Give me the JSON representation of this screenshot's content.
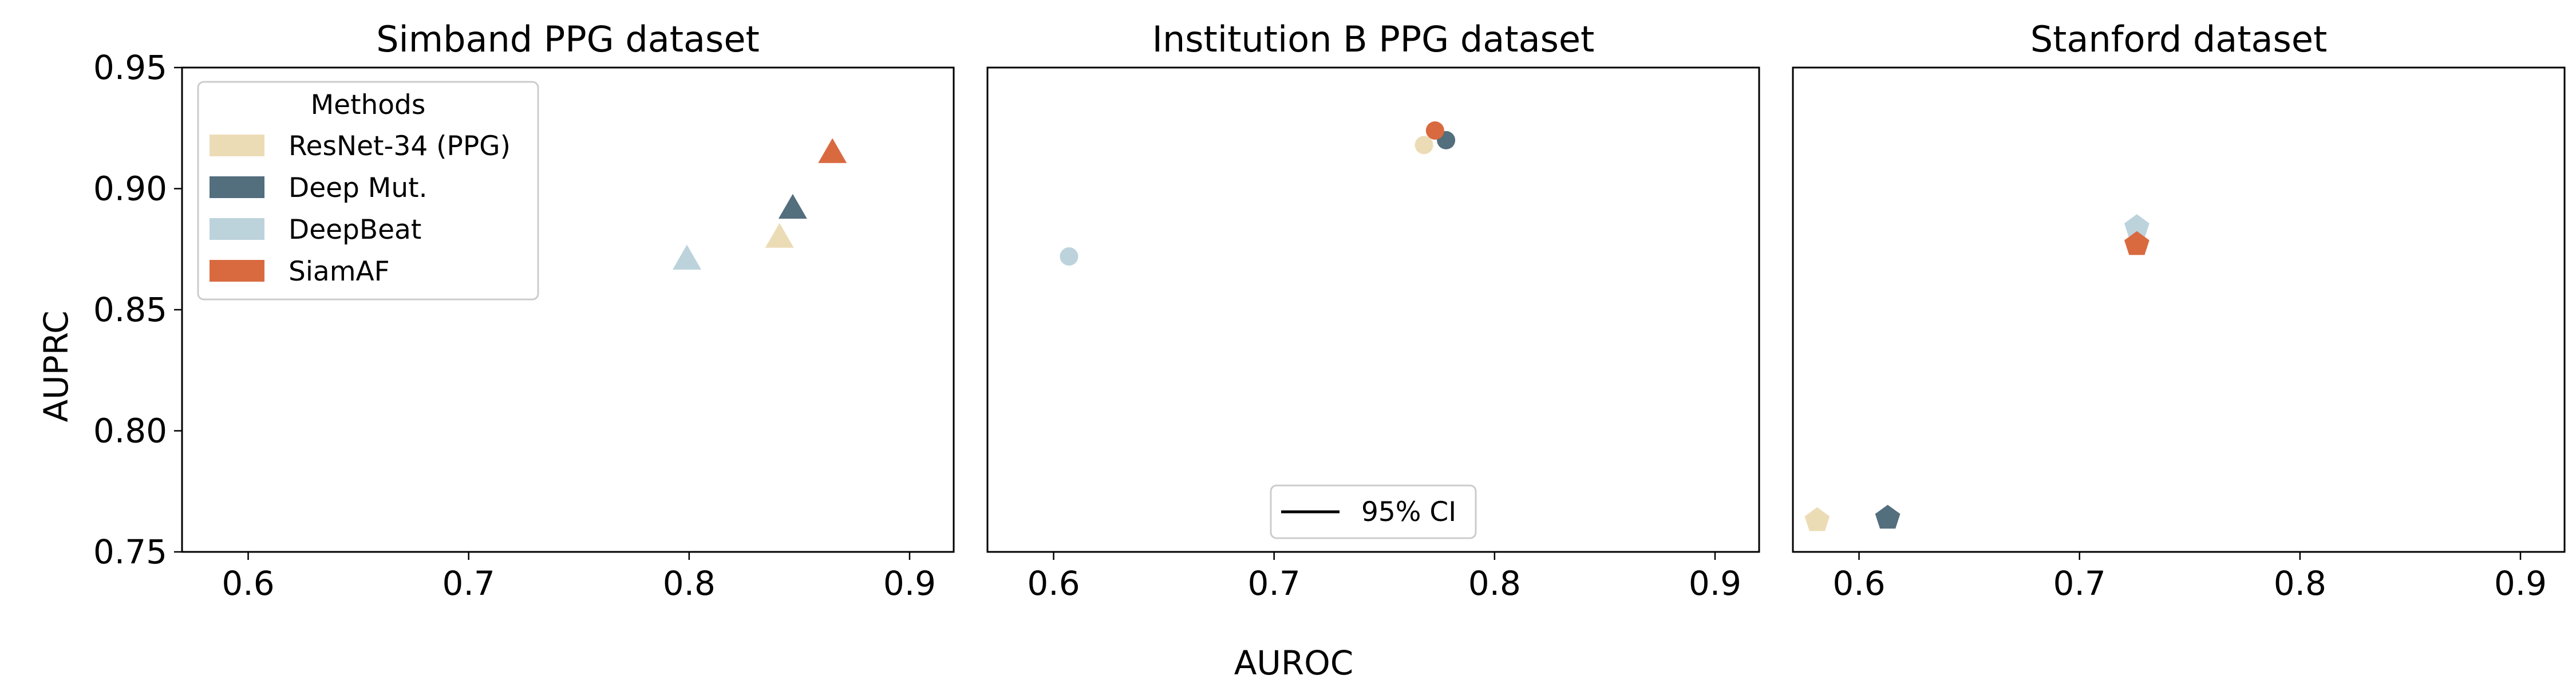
{
  "figure": {
    "shared_xlabel": "AUROC",
    "shared_ylabel": "AUPRC"
  },
  "legend_methods": {
    "title": "Methods",
    "entries": [
      {
        "label": "ResNet-34 (PPG)",
        "color": "#ecdcb6"
      },
      {
        "label": "Deep Mut.",
        "color": "#536e7d"
      },
      {
        "label": "DeepBeat",
        "color": "#bcd3dc"
      },
      {
        "label": "SiamAF",
        "color": "#d96a40"
      }
    ]
  },
  "legend_ci": {
    "label": "95% CI"
  },
  "chart_data": [
    {
      "type": "scatter",
      "title": "Simband PPG dataset",
      "marker": "triangle",
      "xlim": [
        0.57,
        0.92
      ],
      "ylim": [
        0.75,
        0.95
      ],
      "xticks": [
        0.6,
        0.7,
        0.8,
        0.9
      ],
      "yticks": [
        0.75,
        0.8,
        0.85,
        0.9,
        0.95
      ],
      "xtick_labels": [
        "0.6",
        "0.7",
        "0.8",
        "0.9"
      ],
      "ytick_labels": [
        "0.75",
        "0.80",
        "0.85",
        "0.90",
        "0.95"
      ],
      "points": [
        {
          "method": "ResNet-34 (PPG)",
          "x": 0.841,
          "y": 0.879,
          "color": "#ecdcb6"
        },
        {
          "method": "Deep Mut.",
          "x": 0.847,
          "y": 0.891,
          "color": "#536e7d"
        },
        {
          "method": "DeepBeat",
          "x": 0.799,
          "y": 0.87,
          "color": "#bcd3dc"
        },
        {
          "method": "SiamAF",
          "x": 0.865,
          "y": 0.914,
          "color": "#d96a40"
        }
      ]
    },
    {
      "type": "scatter",
      "title": "Institution B PPG dataset",
      "marker": "circle",
      "xlim": [
        0.57,
        0.92
      ],
      "ylim": [
        0.75,
        0.95
      ],
      "xticks": [
        0.6,
        0.7,
        0.8,
        0.9
      ],
      "xtick_labels": [
        "0.6",
        "0.7",
        "0.8",
        "0.9"
      ],
      "points": [
        {
          "method": "ResNet-34 (PPG)",
          "x": 0.768,
          "y": 0.918,
          "color": "#ecdcb6"
        },
        {
          "method": "Deep Mut.",
          "x": 0.778,
          "y": 0.92,
          "color": "#536e7d"
        },
        {
          "method": "DeepBeat",
          "x": 0.607,
          "y": 0.872,
          "color": "#bcd3dc"
        },
        {
          "method": "SiamAF",
          "x": 0.773,
          "y": 0.924,
          "color": "#d96a40"
        }
      ]
    },
    {
      "type": "scatter",
      "title": "Stanford dataset",
      "marker": "pentagon",
      "xlim": [
        0.57,
        0.92
      ],
      "ylim": [
        0.75,
        0.95
      ],
      "xticks": [
        0.6,
        0.7,
        0.8,
        0.9
      ],
      "xtick_labels": [
        "0.6",
        "0.7",
        "0.8",
        "0.9"
      ],
      "points": [
        {
          "method": "ResNet-34 (PPG)",
          "x": 0.581,
          "y": 0.763,
          "color": "#ecdcb6"
        },
        {
          "method": "Deep Mut.",
          "x": 0.613,
          "y": 0.764,
          "color": "#536e7d"
        },
        {
          "method": "DeepBeat",
          "x": 0.726,
          "y": 0.884,
          "color": "#bcd3dc"
        },
        {
          "method": "SiamAF",
          "x": 0.726,
          "y": 0.877,
          "color": "#d96a40"
        }
      ]
    }
  ]
}
